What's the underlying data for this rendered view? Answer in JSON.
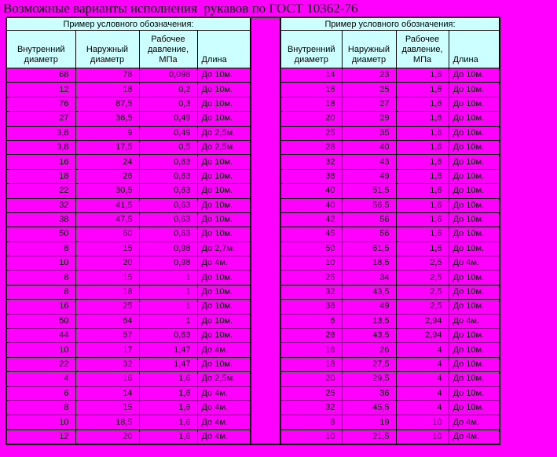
{
  "page": {
    "title": "Возможные варианты исполнения  рукавов по ГОСТ 10362-76"
  },
  "colors": {
    "background": "#FF00FF",
    "header_fill": "#CCFFFF",
    "cell_fill": "#FF00FF",
    "border": "#000000",
    "text": "#000000"
  },
  "tables": [
    {
      "caption": "Пример условного обозначения:",
      "columns": [
        "Внутренний диаметр",
        "Наружный диаметр",
        "Рабочее давление, МПа",
        "Длина"
      ],
      "rows": [
        [
          "68",
          "78",
          "0,098",
          "До 10м."
        ],
        [
          "12",
          "18",
          "0,2",
          "До 10м."
        ],
        [
          "76",
          "87,5",
          "0,3",
          "До 10м."
        ],
        [
          "27",
          "36,5",
          "0,49",
          "До 10м."
        ],
        [
          "3,8",
          "9",
          "0,49",
          "До 2,5м."
        ],
        [
          "3,8",
          "17,5",
          "0,5",
          "До 2,5м."
        ],
        [
          "16",
          "24",
          "0,63",
          "До 10м."
        ],
        [
          "18",
          "26",
          "0,63",
          "До 10м."
        ],
        [
          "22",
          "30,5",
          "0,63",
          "До 10м."
        ],
        [
          "32",
          "41,5",
          "0,63",
          "До 10м."
        ],
        [
          "38",
          "47,5",
          "0,63",
          "До 10м."
        ],
        [
          "50",
          "60",
          "0,63",
          "До 10м."
        ],
        [
          "8",
          "15",
          "0,98",
          "До 2,7м."
        ],
        [
          "10",
          "20",
          "0,98",
          "До 4м."
        ],
        [
          "8",
          "15",
          "1",
          "До 10м."
        ],
        [
          "8",
          "18",
          "1",
          "До 10м."
        ],
        [
          "16",
          "25",
          "1",
          "До 10м."
        ],
        [
          "50",
          "64",
          "1",
          "До 10м."
        ],
        [
          "44",
          "57",
          "0,63",
          "До 10м."
        ],
        [
          "10",
          "17",
          "1,47",
          "До 4м."
        ],
        [
          "22",
          "32",
          "1,47",
          "До 10м."
        ],
        [
          "4",
          "16",
          "1,6",
          "До 2,5м."
        ],
        [
          "6",
          "14",
          "1,6",
          "До 4м."
        ],
        [
          "8",
          "15",
          "1,6",
          "До 4м."
        ],
        [
          "10",
          "18,5",
          "1,6",
          "До 4м."
        ],
        [
          "12",
          "20",
          "1,6",
          "До 4м."
        ]
      ]
    },
    {
      "caption": "Пример условного обозначения:",
      "columns": [
        "Внутренний диаметр",
        "Наружный диаметр",
        "Рабочее давление, МПа",
        "Длина"
      ],
      "rows": [
        [
          "14",
          "23",
          "1,6",
          "До 10м."
        ],
        [
          "16",
          "25",
          "1,6",
          "До 10м."
        ],
        [
          "18",
          "27",
          "1,6",
          "До 10м."
        ],
        [
          "20",
          "29",
          "1,6",
          "До 10м."
        ],
        [
          "25",
          "35",
          "1,6",
          "До 10м."
        ],
        [
          "28",
          "40",
          "1,6",
          "До 10м."
        ],
        [
          "32",
          "43",
          "1,6",
          "До 10м."
        ],
        [
          "38",
          "49",
          "1,6",
          "До 10м."
        ],
        [
          "40",
          "51,5",
          "1,6",
          "До 10м."
        ],
        [
          "40",
          "56,5",
          "1,6",
          "До 10м."
        ],
        [
          "42",
          "56",
          "1,6",
          "До 10м."
        ],
        [
          "45",
          "56",
          "1,6",
          "До 10м."
        ],
        [
          "50",
          "61,5",
          "1,6",
          "До 10м."
        ],
        [
          "10",
          "18,5",
          "2,5",
          "До 4м."
        ],
        [
          "25",
          "34",
          "2,5",
          "До 10м."
        ],
        [
          "32",
          "43,5",
          "2,5",
          "До 10м."
        ],
        [
          "38",
          "49",
          "2,5",
          "До 10м."
        ],
        [
          "6",
          "13,5",
          "2,94",
          "До 4м."
        ],
        [
          "28",
          "43,5",
          "2,94",
          "До 10м."
        ],
        [
          "16",
          "26",
          "4",
          "До 10м."
        ],
        [
          "18",
          "27,5",
          "4",
          "До 10м."
        ],
        [
          "20",
          "29,5",
          "4",
          "До 10м."
        ],
        [
          "25",
          "36",
          "4",
          "До 10м."
        ],
        [
          "32",
          "45,5",
          "4",
          "До 10м."
        ],
        [
          "8",
          "19",
          "10",
          "До 4м."
        ],
        [
          "10",
          "21,5",
          "10",
          "До 4м."
        ]
      ]
    }
  ]
}
